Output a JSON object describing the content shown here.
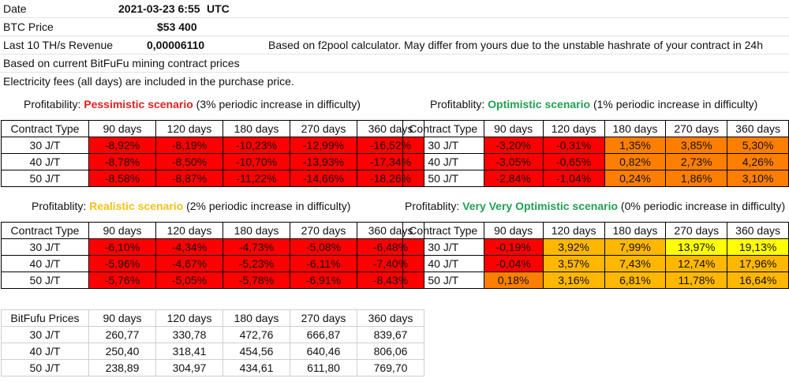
{
  "header": {
    "date_label": "Date",
    "date_value": "2021-03-23 6:55",
    "date_tz": "UTC",
    "btc_label": "BTC Price",
    "btc_value": "$53 400",
    "revenue_label": "Last 10 TH/s Revenue",
    "revenue_value": "0,00006110",
    "revenue_note": "Based on f2pool calculator. May differ from yours due to the unstable hashrate of your contract in 24h",
    "note1": "Based on current BitFuFu mining contract prices",
    "note2": "Electricity fees (all days) are included in the purchase price."
  },
  "colors": {
    "red": "#ff0000",
    "orange": "#fe7e00",
    "amber": "#ffb700",
    "yellow": "#ffff00",
    "pessimistic_text": "#e02020",
    "optimistic_text": "#21a050",
    "realistic_text": "#f5c21a"
  },
  "tables": {
    "pessimistic": {
      "title_prefix": "Profitability: ",
      "title_scenario": "Pessimistic scenario",
      "title_suffix": " (3% periodic increase in difficulty)",
      "header": [
        "Contract Type",
        "90 days",
        "120 days",
        "180 days",
        "270 days",
        "360 days"
      ],
      "rows": [
        {
          "label": "30 J/T",
          "values": [
            "-8,92%",
            "-8,19%",
            "-10,23%",
            "-12,99%",
            "-16,52%"
          ],
          "colors": [
            "red",
            "red",
            "red",
            "red",
            "red"
          ]
        },
        {
          "label": "40 J/T",
          "values": [
            "-8,78%",
            "-8,50%",
            "-10,70%",
            "-13,93%",
            "-17,34%"
          ],
          "colors": [
            "red",
            "red",
            "red",
            "red",
            "red"
          ]
        },
        {
          "label": "50 J/T",
          "values": [
            "-8,58%",
            "-8,87%",
            "-11,22%",
            "-14,66%",
            "-18,26%"
          ],
          "colors": [
            "red",
            "red",
            "red",
            "red",
            "red"
          ]
        }
      ]
    },
    "optimistic": {
      "title_prefix": "Profitablity: ",
      "title_scenario": "Optimistic scenario",
      "title_suffix": " (1% periodic increase in difficulty)",
      "header": [
        "Contract Type",
        "90 days",
        "120 days",
        "180 days",
        "270 days",
        "360 days"
      ],
      "rows": [
        {
          "label": "30 J/T",
          "values": [
            "-3,20%",
            "-0,31%",
            "1,35%",
            "3,85%",
            "5,30%"
          ],
          "colors": [
            "red",
            "red",
            "orange",
            "orange",
            "orange"
          ]
        },
        {
          "label": "40 J/T",
          "values": [
            "-3,05%",
            "-0,65%",
            "0,82%",
            "2,73%",
            "4,26%"
          ],
          "colors": [
            "red",
            "red",
            "orange",
            "orange",
            "orange"
          ]
        },
        {
          "label": "50 J/T",
          "values": [
            "-2,84%",
            "-1,04%",
            "0,24%",
            "1,86%",
            "3,10%"
          ],
          "colors": [
            "red",
            "red",
            "orange",
            "orange",
            "orange"
          ]
        }
      ]
    },
    "realistic": {
      "title_prefix": "Profitablity: ",
      "title_scenario": "Realistic scenario",
      "title_suffix": " (2% periodic increase in difficulty)",
      "header": [
        "Contract Type",
        "90 days",
        "120 days",
        "180 days",
        "270 days",
        "360 days"
      ],
      "rows": [
        {
          "label": "30 J/T",
          "values": [
            "-6,10%",
            "-4,34%",
            "-4,73%",
            "-5,08%",
            "-6,48%"
          ],
          "colors": [
            "red",
            "red",
            "red",
            "red",
            "red"
          ]
        },
        {
          "label": "40 J/T",
          "values": [
            "-5,96%",
            "-4,67%",
            "-5,23%",
            "-6,11%",
            "-7,40%"
          ],
          "colors": [
            "red",
            "red",
            "red",
            "red",
            "red"
          ]
        },
        {
          "label": "50 J/T",
          "values": [
            "-5,76%",
            "-5,05%",
            "-5,78%",
            "-6,91%",
            "-8,43%"
          ],
          "colors": [
            "red",
            "red",
            "red",
            "red",
            "red"
          ]
        }
      ]
    },
    "very_optimistic": {
      "title_prefix": "Profitablity: ",
      "title_scenario": "Very Very Optimistic scenario",
      "title_suffix": " (0% periodic increase in difficulty)",
      "header": [
        "Contract Type",
        "90 days",
        "120 days",
        "180 days",
        "270 days",
        "360 days"
      ],
      "rows": [
        {
          "label": "30 J/T",
          "values": [
            "-0,19%",
            "3,92%",
            "7,99%",
            "13,97%",
            "19,13%"
          ],
          "colors": [
            "red",
            "amber",
            "amber",
            "yellow",
            "yellow"
          ]
        },
        {
          "label": "40 J/T",
          "values": [
            "-0,04%",
            "3,57%",
            "7,43%",
            "12,74%",
            "17,96%"
          ],
          "colors": [
            "red",
            "amber",
            "amber",
            "amber",
            "amber"
          ]
        },
        {
          "label": "50 J/T",
          "values": [
            "0,18%",
            "3,16%",
            "6,81%",
            "11,78%",
            "16,64%"
          ],
          "colors": [
            "orange",
            "amber",
            "amber",
            "amber",
            "amber"
          ]
        }
      ]
    },
    "prices": {
      "header": [
        "BitFufu Prices",
        "90 days",
        "120 days",
        "180 days",
        "270 days",
        "360 days"
      ],
      "rows": [
        {
          "label": "30 J/T",
          "values": [
            "260,77",
            "330,78",
            "472,76",
            "666,87",
            "839,67"
          ]
        },
        {
          "label": "40 J/T",
          "values": [
            "250,40",
            "318,41",
            "454,56",
            "640,46",
            "806,06"
          ]
        },
        {
          "label": "50 J/T",
          "values": [
            "238,89",
            "304,97",
            "434,61",
            "611,80",
            "769,70"
          ]
        }
      ]
    }
  }
}
